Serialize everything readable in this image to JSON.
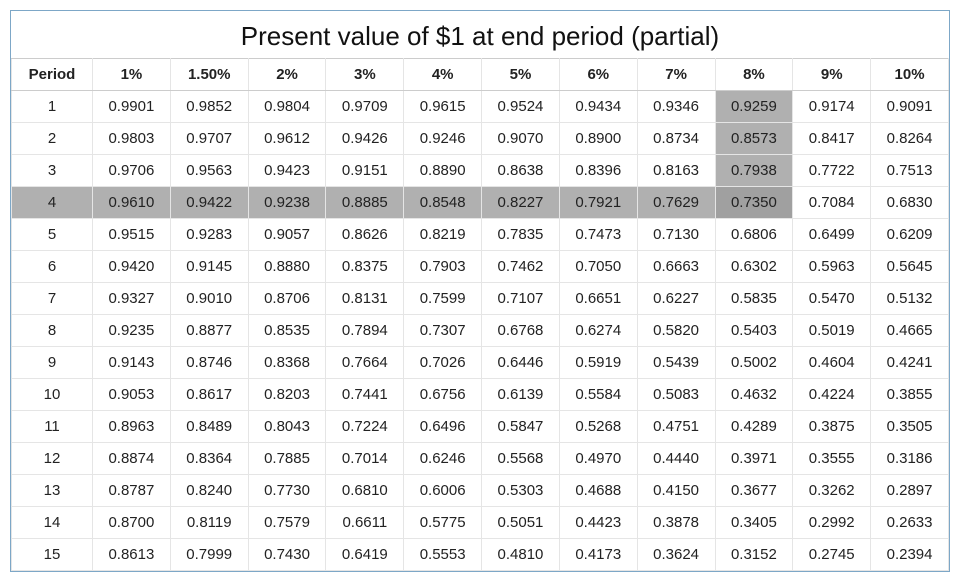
{
  "table": {
    "type": "table",
    "title": "Present value of $1 at end period (partial)",
    "period_header": "Period",
    "columns": [
      "1%",
      "1.50%",
      "2%",
      "3%",
      "4%",
      "5%",
      "6%",
      "7%",
      "8%",
      "9%",
      "10%"
    ],
    "periods": [
      1,
      2,
      3,
      4,
      5,
      6,
      7,
      8,
      9,
      10,
      11,
      12,
      13,
      14,
      15
    ],
    "rows": [
      [
        "0.9901",
        "0.9852",
        "0.9804",
        "0.9709",
        "0.9615",
        "0.9524",
        "0.9434",
        "0.9346",
        "0.9259",
        "0.9174",
        "0.9091"
      ],
      [
        "0.9803",
        "0.9707",
        "0.9612",
        "0.9426",
        "0.9246",
        "0.9070",
        "0.8900",
        "0.8734",
        "0.8573",
        "0.8417",
        "0.8264"
      ],
      [
        "0.9706",
        "0.9563",
        "0.9423",
        "0.9151",
        "0.8890",
        "0.8638",
        "0.8396",
        "0.8163",
        "0.7938",
        "0.7722",
        "0.7513"
      ],
      [
        "0.9610",
        "0.9422",
        "0.9238",
        "0.8885",
        "0.8548",
        "0.8227",
        "0.7921",
        "0.7629",
        "0.7350",
        "0.7084",
        "0.6830"
      ],
      [
        "0.9515",
        "0.9283",
        "0.9057",
        "0.8626",
        "0.8219",
        "0.7835",
        "0.7473",
        "0.7130",
        "0.6806",
        "0.6499",
        "0.6209"
      ],
      [
        "0.9420",
        "0.9145",
        "0.8880",
        "0.8375",
        "0.7903",
        "0.7462",
        "0.7050",
        "0.6663",
        "0.6302",
        "0.5963",
        "0.5645"
      ],
      [
        "0.9327",
        "0.9010",
        "0.8706",
        "0.8131",
        "0.7599",
        "0.7107",
        "0.6651",
        "0.6227",
        "0.5835",
        "0.5470",
        "0.5132"
      ],
      [
        "0.9235",
        "0.8877",
        "0.8535",
        "0.7894",
        "0.7307",
        "0.6768",
        "0.6274",
        "0.5820",
        "0.5403",
        "0.5019",
        "0.4665"
      ],
      [
        "0.9143",
        "0.8746",
        "0.8368",
        "0.7664",
        "0.7026",
        "0.6446",
        "0.5919",
        "0.5439",
        "0.5002",
        "0.4604",
        "0.4241"
      ],
      [
        "0.9053",
        "0.8617",
        "0.8203",
        "0.7441",
        "0.6756",
        "0.6139",
        "0.5584",
        "0.5083",
        "0.4632",
        "0.4224",
        "0.3855"
      ],
      [
        "0.8963",
        "0.8489",
        "0.8043",
        "0.7224",
        "0.6496",
        "0.5847",
        "0.5268",
        "0.4751",
        "0.4289",
        "0.3875",
        "0.3505"
      ],
      [
        "0.8874",
        "0.8364",
        "0.7885",
        "0.7014",
        "0.6246",
        "0.5568",
        "0.4970",
        "0.4440",
        "0.3971",
        "0.3555",
        "0.3186"
      ],
      [
        "0.8787",
        "0.8240",
        "0.7730",
        "0.6810",
        "0.6006",
        "0.5303",
        "0.4688",
        "0.4150",
        "0.3677",
        "0.3262",
        "0.2897"
      ],
      [
        "0.8700",
        "0.8119",
        "0.7579",
        "0.6611",
        "0.5775",
        "0.5051",
        "0.4423",
        "0.3878",
        "0.3405",
        "0.2992",
        "0.2633"
      ],
      [
        "0.8613",
        "0.7999",
        "0.7430",
        "0.6419",
        "0.5553",
        "0.4810",
        "0.4173",
        "0.3624",
        "0.3152",
        "0.2745",
        "0.2394"
      ]
    ],
    "highlight_row_index": 3,
    "highlight_col_index": 8,
    "highlight_row_stops_at_col": 8,
    "highlight_col_stops_at_row": 3,
    "colors": {
      "border_outer": "#7da7c7",
      "border_cell": "#e5e5e5",
      "highlight": "#b0b0b0",
      "highlight_intersect": "#a0a0a0",
      "text": "#222222",
      "background": "#ffffff"
    },
    "fonts": {
      "title_size_pt": 20,
      "cell_size_pt": 11,
      "header_weight": "bold"
    }
  }
}
